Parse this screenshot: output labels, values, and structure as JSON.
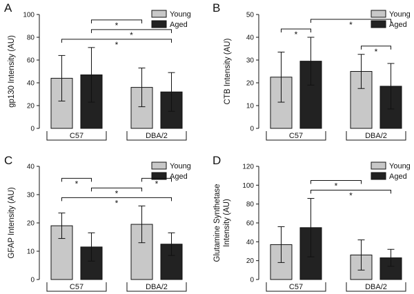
{
  "colors": {
    "young": "#c8c8c8",
    "aged": "#222222",
    "axis": "#111111"
  },
  "chart_data": [
    {
      "type": "bar",
      "panel_label": "A",
      "title": "",
      "ylabel": [
        "gp130 Intensity (AU)"
      ],
      "ylim": [
        0,
        100
      ],
      "yticks": [
        0,
        20,
        40,
        60,
        80,
        100
      ],
      "groups": [
        "C57",
        "DBA/2"
      ],
      "legend": [
        "Young",
        "Aged"
      ],
      "legend_position": "top-right",
      "series": [
        {
          "name": "Young",
          "values": [
            44,
            36
          ],
          "errors": [
            20,
            17
          ]
        },
        {
          "name": "Aged",
          "values": [
            47,
            32
          ],
          "errors": [
            24,
            17
          ]
        }
      ],
      "significance": [
        {
          "from": [
            0,
            0
          ],
          "to": [
            1,
            1
          ],
          "label": "*"
        },
        {
          "from": [
            0,
            1
          ],
          "to": [
            1,
            1
          ],
          "label": "*"
        },
        {
          "from": [
            0,
            1
          ],
          "to": [
            1,
            0
          ],
          "label": "*"
        }
      ]
    },
    {
      "type": "bar",
      "panel_label": "B",
      "title": "",
      "ylabel": [
        "CTB Intensity (AU)"
      ],
      "ylim": [
        0,
        50
      ],
      "yticks": [
        0,
        10,
        20,
        30,
        40,
        50
      ],
      "groups": [
        "C57",
        "DBA/2"
      ],
      "legend": [
        "Young",
        "Aged"
      ],
      "legend_position": "top-right",
      "series": [
        {
          "name": "Young",
          "values": [
            22.5,
            25
          ],
          "errors": [
            11,
            7.5
          ]
        },
        {
          "name": "Aged",
          "values": [
            29.5,
            18.5
          ],
          "errors": [
            10.5,
            10
          ]
        }
      ],
      "significance": [
        {
          "from": [
            0,
            0
          ],
          "to": [
            0,
            1
          ],
          "label": "*"
        },
        {
          "from": [
            0,
            1
          ],
          "to": [
            1,
            1
          ],
          "label": "*"
        },
        {
          "from": [
            1,
            0
          ],
          "to": [
            1,
            1
          ],
          "label": "*"
        }
      ]
    },
    {
      "type": "bar",
      "panel_label": "C",
      "title": "",
      "ylabel": [
        "GFAP Intensity (AU)"
      ],
      "ylim": [
        0,
        40
      ],
      "yticks": [
        0,
        10,
        20,
        30,
        40
      ],
      "groups": [
        "C57",
        "DBA/2"
      ],
      "legend": [
        "Young",
        "Aged"
      ],
      "legend_position": "top-right",
      "series": [
        {
          "name": "Young",
          "values": [
            19,
            19.5
          ],
          "errors": [
            4.5,
            6.5
          ]
        },
        {
          "name": "Aged",
          "values": [
            11.5,
            12.5
          ],
          "errors": [
            5,
            4
          ]
        }
      ],
      "significance": [
        {
          "from": [
            0,
            0
          ],
          "to": [
            1,
            1
          ],
          "label": "*"
        },
        {
          "from": [
            0,
            1
          ],
          "to": [
            1,
            0
          ],
          "label": "*"
        },
        {
          "from": [
            0,
            0
          ],
          "to": [
            0,
            1
          ],
          "label": "*"
        },
        {
          "from": [
            1,
            0
          ],
          "to": [
            1,
            1
          ],
          "label": "*"
        }
      ]
    },
    {
      "type": "bar",
      "panel_label": "D",
      "title": "",
      "ylabel": [
        "Glutamine Synthetase",
        "Intensity (AU)"
      ],
      "ylim": [
        0,
        120
      ],
      "yticks": [
        0,
        20,
        40,
        60,
        80,
        100,
        120
      ],
      "groups": [
        "C57",
        "DBA/2"
      ],
      "legend": [
        "Young",
        "Aged"
      ],
      "legend_position": "top-right",
      "series": [
        {
          "name": "Young",
          "values": [
            37,
            26
          ],
          "errors": [
            19,
            16
          ]
        },
        {
          "name": "Aged",
          "values": [
            55,
            23
          ],
          "errors": [
            31,
            9
          ]
        }
      ],
      "significance": [
        {
          "from": [
            0,
            1
          ],
          "to": [
            1,
            1
          ],
          "label": "*"
        },
        {
          "from": [
            0,
            1
          ],
          "to": [
            1,
            0
          ],
          "label": "*"
        }
      ]
    }
  ]
}
